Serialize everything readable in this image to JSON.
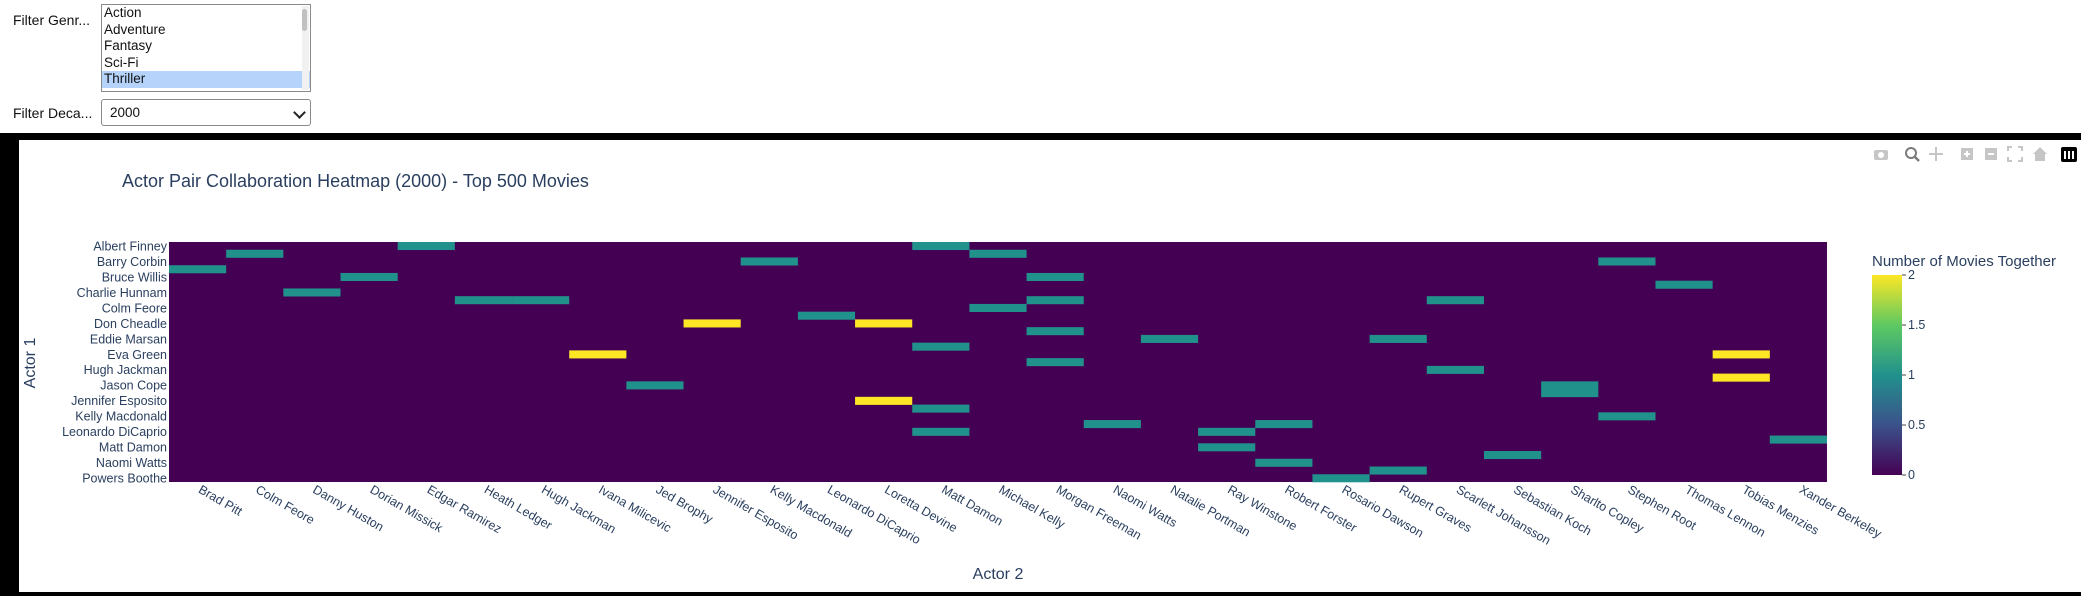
{
  "controls": {
    "genre_label": "Filter Genr...",
    "genre_options": [
      "Action",
      "Adventure",
      "Fantasy",
      "Sci-Fi",
      "Thriller"
    ],
    "genre_selected": "Thriller",
    "decade_label": "Filter Deca...",
    "decade_value": "2000"
  },
  "modebar": [
    "camera-icon",
    "zoom-icon",
    "pan-icon",
    "zoom-in-icon",
    "zoom-out-icon",
    "autoscale-icon",
    "reset-axes-icon",
    "plotly-logo-icon"
  ],
  "chart_data": {
    "type": "heatmap",
    "title": "Actor Pair Collaboration Heatmap (2000) - Top 500 Movies",
    "xlabel": "Actor 2",
    "ylabel": "Actor 1",
    "colorbar_title": "Number of Movies Together",
    "colorbar_ticks": [
      "0",
      "0.5",
      "1",
      "1.5",
      "2"
    ],
    "zmin": 0,
    "zmax": 2,
    "colorscale": "Viridis",
    "x": [
      "Brad Pitt",
      "Colm Feore",
      "Danny Huston",
      "Dorian Missick",
      "Edgar Ramirez",
      "Heath Ledger",
      "Hugh Jackman",
      "Ivana Milicevic",
      "Jed Brophy",
      "Jennifer Esposito",
      "Kelly Macdonald",
      "Leonardo DiCaprio",
      "Loretta Devine",
      "Matt Damon",
      "Michael Kelly",
      "Morgan Freeman",
      "Naomi Watts",
      "Natalie Portman",
      "Ray Winstone",
      "Robert Forster",
      "Rosario Dawson",
      "Rupert Graves",
      "Scarlett Johansson",
      "Sebastian Koch",
      "Sharlto Copley",
      "Stephen Root",
      "Thomas Lennon",
      "Tobias Menzies",
      "Xander Berkeley"
    ],
    "y_tick_labels": [
      "Albert Finney",
      "Barry Corbin",
      "Bruce Willis",
      "Charlie Hunnam",
      "Colm Feore",
      "Don Cheadle",
      "Eddie Marsan",
      "Eva Green",
      "Hugh Jackman",
      "Jason Cope",
      "Jennifer Esposito",
      "Kelly Macdonald",
      "Leonardo DiCaprio",
      "Matt Damon",
      "Naomi Watts",
      "Powers Boothe"
    ],
    "y_row_count": 31,
    "cells": [
      [
        0,
        4,
        1
      ],
      [
        0,
        13,
        1
      ],
      [
        1,
        1,
        1
      ],
      [
        1,
        14,
        1
      ],
      [
        2,
        10,
        1
      ],
      [
        2,
        25,
        1
      ],
      [
        3,
        0,
        1
      ],
      [
        4,
        3,
        1
      ],
      [
        4,
        15,
        1
      ],
      [
        5,
        26,
        1
      ],
      [
        6,
        2,
        1
      ],
      [
        7,
        5,
        1
      ],
      [
        7,
        6,
        1
      ],
      [
        7,
        15,
        1
      ],
      [
        7,
        22,
        1
      ],
      [
        8,
        14,
        1
      ],
      [
        9,
        11,
        1
      ],
      [
        10,
        9,
        2
      ],
      [
        10,
        12,
        2
      ],
      [
        11,
        15,
        1
      ],
      [
        12,
        17,
        1
      ],
      [
        12,
        21,
        1
      ],
      [
        13,
        13,
        1
      ],
      [
        14,
        7,
        2
      ],
      [
        14,
        27,
        2
      ],
      [
        15,
        15,
        1
      ],
      [
        16,
        22,
        1
      ],
      [
        17,
        27,
        2
      ],
      [
        18,
        8,
        1
      ],
      [
        18,
        24,
        1
      ],
      [
        19,
        24,
        1
      ],
      [
        20,
        12,
        2
      ],
      [
        21,
        13,
        1
      ],
      [
        22,
        25,
        1
      ],
      [
        23,
        16,
        1
      ],
      [
        23,
        19,
        1
      ],
      [
        24,
        13,
        1
      ],
      [
        24,
        18,
        1
      ],
      [
        25,
        28,
        1
      ],
      [
        26,
        18,
        1
      ],
      [
        27,
        23,
        1
      ],
      [
        28,
        19,
        1
      ],
      [
        29,
        21,
        1
      ],
      [
        30,
        20,
        1
      ]
    ]
  }
}
